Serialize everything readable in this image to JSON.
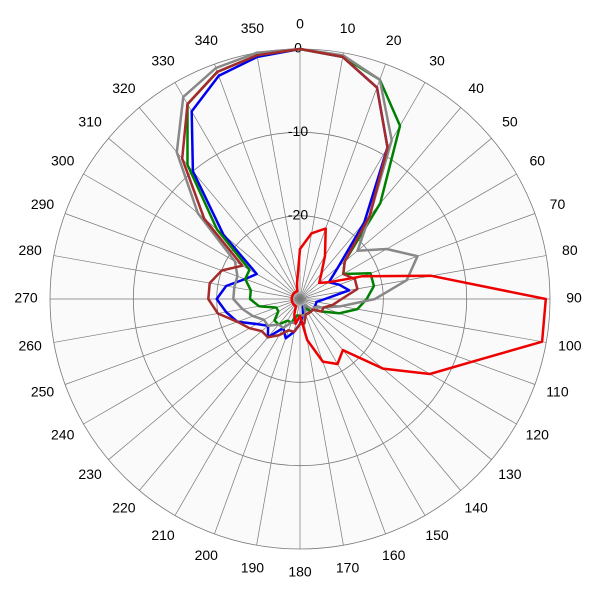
{
  "chart_data": {
    "type": "polar",
    "rlim": [
      -30,
      0
    ],
    "rticks": [
      0,
      -10,
      -20
    ],
    "thetaticks": [
      0,
      10,
      20,
      30,
      40,
      50,
      60,
      70,
      80,
      90,
      100,
      110,
      120,
      130,
      140,
      150,
      160,
      170,
      180,
      190,
      200,
      210,
      220,
      230,
      240,
      250,
      260,
      270,
      280,
      290,
      300,
      310,
      320,
      330,
      340,
      350
    ],
    "theta": [
      0,
      10,
      20,
      30,
      40,
      50,
      60,
      70,
      80,
      90,
      100,
      110,
      120,
      130,
      140,
      150,
      160,
      170,
      180,
      190,
      200,
      210,
      220,
      230,
      240,
      250,
      260,
      270,
      280,
      290,
      300,
      310,
      320,
      330,
      340,
      350
    ],
    "grid": true,
    "series": [
      {
        "color": "#0000ee",
        "values": [
          0,
          -0.5,
          -3,
          -9,
          -18,
          -24,
          -26,
          -25,
          -24,
          -27,
          -28,
          -28,
          -28,
          -28,
          -28,
          -29,
          -29,
          -28,
          -27,
          -26,
          -25,
          -26,
          -24,
          -25,
          -24,
          -22,
          -21,
          -20,
          -21,
          -23,
          -24,
          -18,
          -10,
          -4,
          -1.5,
          -0.5
        ]
      },
      {
        "color": "#008000",
        "values": [
          0,
          -0.5,
          -2,
          -6,
          -15,
          -23,
          -24,
          -21,
          -21,
          -22,
          -23,
          -25,
          -27,
          -28,
          -28,
          -29,
          -28,
          -28,
          -28,
          -28,
          -27,
          -27,
          -26,
          -26,
          -27,
          -27,
          -25,
          -24,
          -24,
          -23,
          -23,
          -17,
          -9,
          -3,
          -1,
          -0.3
        ]
      },
      {
        "color": "#888888",
        "values": [
          0,
          -0.3,
          -2,
          -8,
          -17,
          -21,
          -18,
          -15,
          -17,
          -21,
          -25,
          -27,
          -28,
          -28,
          -29,
          -29,
          -28,
          -28,
          -28,
          -27,
          -27,
          -26,
          -26,
          -25,
          -25,
          -24,
          -23,
          -22,
          -22,
          -22,
          -21,
          -14,
          -7,
          -2,
          -0.5,
          0
        ]
      },
      {
        "color": "#a52a2a",
        "values": [
          0,
          -0.5,
          -3,
          -9,
          -17,
          -23,
          -24,
          -23,
          -23,
          -25,
          -26,
          -27,
          -27,
          -28,
          -28,
          -28,
          -28,
          -27,
          -27,
          -26,
          -26,
          -25,
          -24,
          -24,
          -23,
          -22,
          -20,
          -19,
          -19,
          -20,
          -22,
          -15,
          -8,
          -3,
          -1,
          -0.3
        ]
      },
      {
        "color": "#ee0000",
        "values": [
          -24,
          -22,
          -21,
          -24,
          -26,
          -27,
          -26,
          -22,
          -14,
          -0.5,
          -0.5,
          -8,
          -12,
          -17,
          -22,
          -21,
          -22,
          -25,
          -28,
          -27,
          -28,
          -29,
          -29,
          -29,
          -29,
          -29,
          -29,
          -29,
          -29,
          -29,
          -29,
          -29,
          -29,
          -29,
          -29,
          -28
        ]
      }
    ]
  }
}
